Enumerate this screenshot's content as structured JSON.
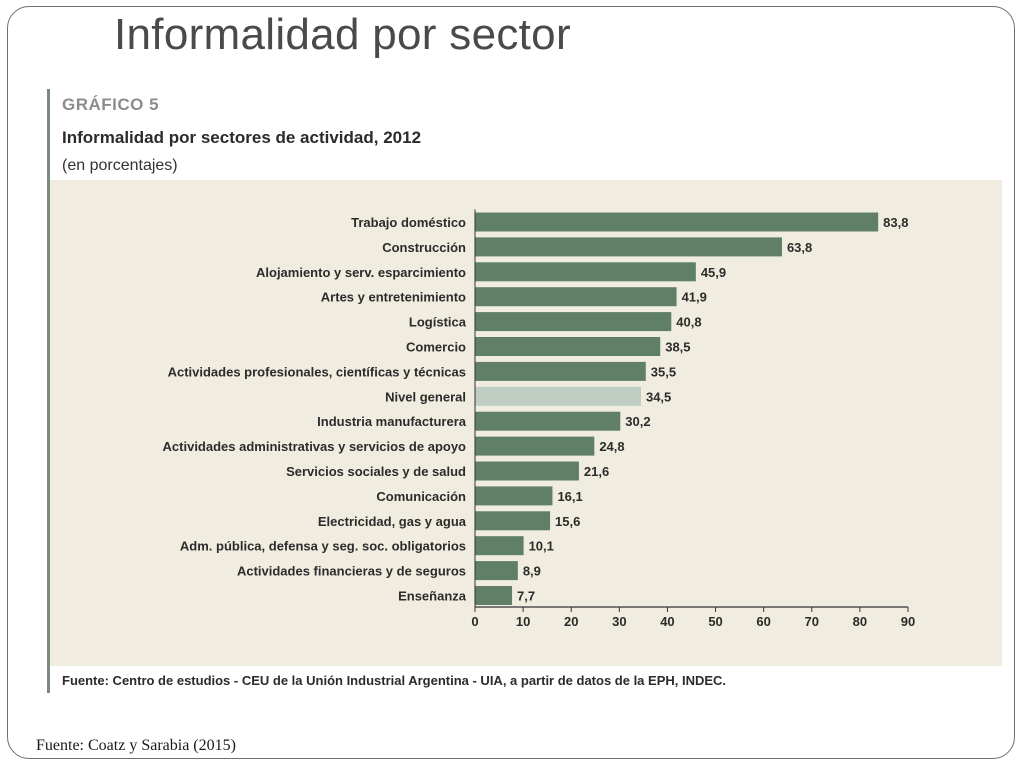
{
  "slide": {
    "title": "Informalidad por sector",
    "footer": "Fuente: Coatz y Sarabia (2015)"
  },
  "figure": {
    "number": "GRÁFICO 5",
    "title": "Informalidad por sectores de actividad, 2012",
    "units": "(en porcentajes)",
    "source": "Fuente: Centro de estudios - CEU de la Unión Industrial Argentina - UIA, a partir de datos de la EPH, INDEC."
  },
  "colors": {
    "bar": "#5f7f67",
    "bar_highlight": "#bfcdc2",
    "panel": "#f0ede0",
    "axis": "#333333"
  },
  "chart_data": {
    "type": "bar",
    "orientation": "horizontal",
    "title": "Informalidad por sectores de actividad, 2012",
    "subtitle": "(en porcentajes)",
    "categories": [
      "Trabajo doméstico",
      "Construcción",
      "Alojamiento y serv. esparcimiento",
      "Artes y entretenimiento",
      "Logística",
      "Comercio",
      "Actividades profesionales, científicas y técnicas",
      "Nivel general",
      "Industria manufacturera",
      "Actividades administrativas y servicios de apoyo",
      "Servicios sociales y de salud",
      "Comunicación",
      "Electricidad, gas y agua",
      "Adm. pública, defensa y seg. soc. obligatorios",
      "Actividades financieras y de seguros",
      "Enseñanza"
    ],
    "values": [
      83.8,
      63.8,
      45.9,
      41.9,
      40.8,
      38.5,
      35.5,
      34.5,
      30.2,
      24.8,
      21.6,
      16.1,
      15.6,
      10.1,
      8.9,
      7.7
    ],
    "value_labels": [
      "83,8",
      "63,8",
      "45,9",
      "41,9",
      "40,8",
      "38,5",
      "35,5",
      "34,5",
      "30,2",
      "24,8",
      "21,6",
      "16,1",
      "15,6",
      "10,1",
      "8,9",
      "7,7"
    ],
    "highlight": "Nivel general",
    "xlim": [
      0,
      90
    ],
    "xticks": [
      0,
      10,
      20,
      30,
      40,
      50,
      60,
      70,
      80,
      90
    ],
    "grid": false
  }
}
